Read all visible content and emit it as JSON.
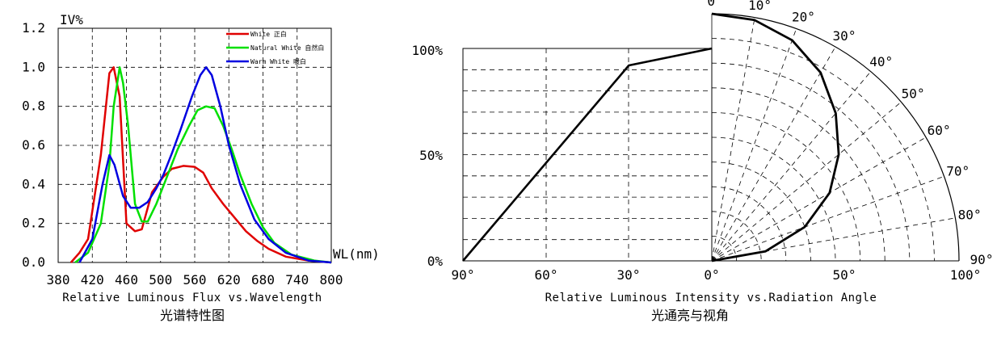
{
  "chart_data": [
    {
      "type": "line",
      "title": "光谱特性图",
      "caption": "Relative Luminous Flux vs.Wavelength",
      "ylabel": "IV%",
      "xlabel": "WL(nm)",
      "xlim": [
        380,
        800
      ],
      "ylim": [
        0,
        1.2
      ],
      "x_ticks": [
        "380",
        "420",
        "460",
        "500",
        "560",
        "620",
        "680",
        "740",
        "800"
      ],
      "y_ticks": [
        "0.0",
        "0.2",
        "0.4",
        "0.6",
        "0.8",
        "1.0",
        "1.2"
      ],
      "grid": "dashed",
      "legend": "top-right",
      "series": [
        {
          "name": "White 正白",
          "color": "#e00000",
          "points": [
            [
              395,
              0
            ],
            [
              405,
              0.05
            ],
            [
              415,
              0.12
            ],
            [
              430,
              0.55
            ],
            [
              440,
              0.97
            ],
            [
              445,
              1.0
            ],
            [
              452,
              0.85
            ],
            [
              460,
              0.2
            ],
            [
              470,
              0.16
            ],
            [
              478,
              0.17
            ],
            [
              490,
              0.36
            ],
            [
              505,
              0.44
            ],
            [
              520,
              0.48
            ],
            [
              540,
              0.495
            ],
            [
              560,
              0.49
            ],
            [
              575,
              0.46
            ],
            [
              590,
              0.38
            ],
            [
              610,
              0.3
            ],
            [
              630,
              0.23
            ],
            [
              650,
              0.16
            ],
            [
              670,
              0.11
            ],
            [
              690,
              0.07
            ],
            [
              720,
              0.03
            ],
            [
              760,
              0.01
            ],
            [
              800,
              0
            ]
          ]
        },
        {
          "name": "Natural White 自然白",
          "color": "#00e000",
          "points": [
            [
              400,
              0
            ],
            [
              415,
              0.05
            ],
            [
              430,
              0.2
            ],
            [
              440,
              0.5
            ],
            [
              445,
              0.8
            ],
            [
              452,
              1.0
            ],
            [
              456,
              0.92
            ],
            [
              462,
              0.7
            ],
            [
              470,
              0.3
            ],
            [
              478,
              0.21
            ],
            [
              485,
              0.21
            ],
            [
              495,
              0.3
            ],
            [
              510,
              0.43
            ],
            [
              530,
              0.58
            ],
            [
              550,
              0.7
            ],
            [
              565,
              0.78
            ],
            [
              580,
              0.8
            ],
            [
              595,
              0.79
            ],
            [
              610,
              0.7
            ],
            [
              625,
              0.58
            ],
            [
              640,
              0.45
            ],
            [
              660,
              0.3
            ],
            [
              680,
              0.18
            ],
            [
              700,
              0.1
            ],
            [
              730,
              0.04
            ],
            [
              770,
              0.01
            ],
            [
              800,
              0
            ]
          ]
        },
        {
          "name": "Warm White 暖白",
          "color": "#0000e0",
          "points": [
            [
              405,
              0
            ],
            [
              420,
              0.12
            ],
            [
              432,
              0.4
            ],
            [
              440,
              0.55
            ],
            [
              446,
              0.5
            ],
            [
              456,
              0.34
            ],
            [
              465,
              0.28
            ],
            [
              475,
              0.28
            ],
            [
              485,
              0.31
            ],
            [
              495,
              0.38
            ],
            [
              505,
              0.45
            ],
            [
              520,
              0.56
            ],
            [
              535,
              0.68
            ],
            [
              555,
              0.85
            ],
            [
              570,
              0.96
            ],
            [
              580,
              1.0
            ],
            [
              590,
              0.96
            ],
            [
              605,
              0.8
            ],
            [
              620,
              0.6
            ],
            [
              640,
              0.4
            ],
            [
              665,
              0.22
            ],
            [
              690,
              0.12
            ],
            [
              720,
              0.05
            ],
            [
              760,
              0.01
            ],
            [
              800,
              0
            ]
          ]
        }
      ]
    },
    {
      "type": "polar",
      "title": "光通亮与视角",
      "caption": "Relative Luminous Intensity vs.Radiation Angle",
      "y_ticks": [
        "0%",
        "50%",
        "100%"
      ],
      "x_ticks": [
        "90°",
        "60°",
        "30°",
        "0°",
        "50°",
        "100°"
      ],
      "angle_ticks": [
        "0°",
        "10°",
        "20°",
        "30°",
        "40°",
        "50°",
        "60°",
        "70°",
        "80°",
        "90°"
      ],
      "angle_range_deg": [
        0,
        90
      ],
      "radius_range_pct": [
        0,
        100
      ],
      "rectangular_curve": [
        [
          90,
          0
        ],
        [
          30,
          92
        ],
        [
          0,
          100
        ]
      ],
      "polar_curve": [
        [
          0,
          100
        ],
        [
          10,
          99
        ],
        [
          20,
          95
        ],
        [
          30,
          88
        ],
        [
          40,
          78
        ],
        [
          50,
          67
        ],
        [
          60,
          55
        ],
        [
          70,
          40
        ],
        [
          80,
          22
        ],
        [
          90,
          0
        ]
      ]
    }
  ]
}
